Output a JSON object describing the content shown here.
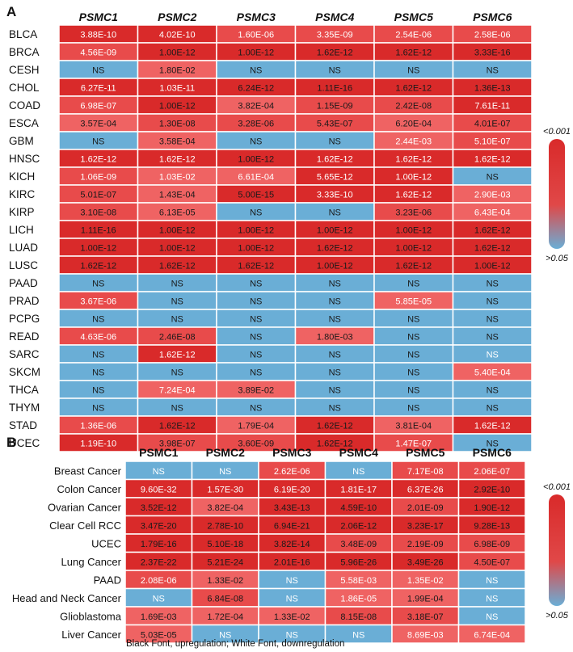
{
  "colors": {
    "strong": "#d92a2a",
    "medium": "#e84b4b",
    "light": "#ef6363",
    "ns": "#6aaed6",
    "grid": "#ffffff",
    "dark_text": "#1a1a1a",
    "light_text": "#ffffff"
  },
  "chart_data": [
    {
      "type": "heatmap",
      "panel_label": "A",
      "columns": [
        "PSMC1",
        "PSMC2",
        "PSMC3",
        "PSMC4",
        "PSMC5",
        "PSMC6"
      ],
      "rows": [
        "BLCA",
        "BRCA",
        "CESH",
        "CHOL",
        "COAD",
        "ESCA",
        "GBM",
        "HNSC",
        "KICH",
        "KIRC",
        "KIRP",
        "LICH",
        "LUAD",
        "LUSC",
        "PAAD",
        "PRAD",
        "PCPG",
        "READ",
        "SARC",
        "SKCM",
        "THCA",
        "THYM",
        "STAD",
        "UCEC"
      ],
      "values": [
        [
          "3.88E-10",
          "4.02E-10",
          "1.60E-06",
          "3.35E-09",
          "2.54E-06",
          "2.58E-06"
        ],
        [
          "4.56E-09",
          "1.00E-12",
          "1.00E-12",
          "1.62E-12",
          "1.62E-12",
          "3.33E-16"
        ],
        [
          "NS",
          "1.80E-02",
          "NS",
          "NS",
          "NS",
          "NS"
        ],
        [
          "6.27E-11",
          "1.03E-11",
          "6.24E-12",
          "1.11E-16",
          "1.62E-12",
          "1.36E-13"
        ],
        [
          "6.98E-07",
          "1.00E-12",
          "3.82E-04",
          "1.15E-09",
          "2.42E-08",
          "7.61E-11"
        ],
        [
          "3.57E-04",
          "1.30E-08",
          "3.28E-06",
          "5.43E-07",
          "6.20E-04",
          "4.01E-07"
        ],
        [
          "NS",
          "3.58E-04",
          "NS",
          "NS",
          "2.44E-03",
          "5.10E-07"
        ],
        [
          "1.62E-12",
          "1.62E-12",
          "1.00E-12",
          "1.62E-12",
          "1.62E-12",
          "1.62E-12"
        ],
        [
          "1.06E-09",
          "1.03E-02",
          "6.61E-04",
          "5.65E-12",
          "1.00E-12",
          "NS"
        ],
        [
          "5.01E-07",
          "1.43E-04",
          "5.00E-15",
          "3.33E-10",
          "1.62E-12",
          "2.90E-03"
        ],
        [
          "3.10E-08",
          "6.13E-05",
          "NS",
          "NS",
          "3.23E-06",
          "6.43E-04"
        ],
        [
          "1.11E-16",
          "1.00E-12",
          "1.00E-12",
          "1.00E-12",
          "1.00E-12",
          "1.62E-12"
        ],
        [
          "1.00E-12",
          "1.00E-12",
          "1.00E-12",
          "1.62E-12",
          "1.00E-12",
          "1.62E-12"
        ],
        [
          "1.62E-12",
          "1.62E-12",
          "1.62E-12",
          "1.00E-12",
          "1.62E-12",
          "1.00E-12"
        ],
        [
          "NS",
          "NS",
          "NS",
          "NS",
          "NS",
          "NS"
        ],
        [
          "3.67E-06",
          "NS",
          "NS",
          "NS",
          "5.85E-05",
          "NS"
        ],
        [
          "NS",
          "NS",
          "NS",
          "NS",
          "NS",
          "NS"
        ],
        [
          "4.63E-06",
          "2.46E-08",
          "NS",
          "1.80E-03",
          "NS",
          "NS"
        ],
        [
          "NS",
          "1.62E-12",
          "NS",
          "NS",
          "NS",
          "NS"
        ],
        [
          "NS",
          "NS",
          "NS",
          "NS",
          "NS",
          "5.40E-04"
        ],
        [
          "NS",
          "7.24E-04",
          "3.89E-02",
          "NS",
          "NS",
          "NS"
        ],
        [
          "NS",
          "NS",
          "NS",
          "NS",
          "NS",
          "NS"
        ],
        [
          "1.36E-06",
          "1.62E-12",
          "1.79E-04",
          "1.62E-12",
          "3.81E-04",
          "1.62E-12"
        ],
        [
          "1.19E-10",
          "3.98E-07",
          "3.60E-09",
          "1.62E-12",
          "1.47E-07",
          "NS"
        ]
      ],
      "white_font": [
        [
          1,
          1,
          1,
          1,
          1,
          1
        ],
        [
          1,
          0,
          0,
          0,
          0,
          0
        ],
        [
          0,
          0,
          0,
          0,
          0,
          0
        ],
        [
          1,
          1,
          0,
          0,
          0,
          0
        ],
        [
          1,
          0,
          0,
          0,
          0,
          1
        ],
        [
          0,
          0,
          0,
          0,
          0,
          0
        ],
        [
          0,
          0,
          0,
          0,
          1,
          1
        ],
        [
          1,
          1,
          0,
          1,
          1,
          1
        ],
        [
          1,
          1,
          1,
          1,
          1,
          0
        ],
        [
          0,
          0,
          0,
          1,
          1,
          1
        ],
        [
          0,
          0,
          0,
          0,
          0,
          1
        ],
        [
          0,
          0,
          0,
          0,
          0,
          0
        ],
        [
          0,
          0,
          0,
          0,
          0,
          0
        ],
        [
          0,
          0,
          0,
          0,
          0,
          0
        ],
        [
          0,
          0,
          0,
          0,
          0,
          0
        ],
        [
          1,
          0,
          0,
          0,
          1,
          0
        ],
        [
          0,
          0,
          0,
          0,
          0,
          0
        ],
        [
          1,
          0,
          0,
          0,
          0,
          0
        ],
        [
          0,
          1,
          0,
          0,
          0,
          1
        ],
        [
          0,
          0,
          0,
          0,
          0,
          1
        ],
        [
          0,
          1,
          0,
          0,
          0,
          0
        ],
        [
          0,
          0,
          0,
          0,
          0,
          0
        ],
        [
          1,
          0,
          0,
          0,
          0,
          1
        ],
        [
          1,
          0,
          0,
          0,
          1,
          0
        ]
      ],
      "legend": {
        "top": "<0.001",
        "bottom": ">0.05"
      }
    },
    {
      "type": "heatmap",
      "panel_label": "B",
      "columns": [
        "PSMC1",
        "PSMC2",
        "PSMC3",
        "PSMC4",
        "PSMC5",
        "PSMC6"
      ],
      "rows": [
        "Breast Cancer",
        "Colon Cancer",
        "Ovarian Cancer",
        "Clear Cell RCC",
        "UCEC",
        "Lung Cancer",
        "PAAD",
        "Head and Neck Cancer",
        "Glioblastoma",
        "Liver Cancer"
      ],
      "values": [
        [
          "NS",
          "NS",
          "2.62E-06",
          "NS",
          "7.17E-08",
          "2.06E-07"
        ],
        [
          "9.60E-32",
          "1.57E-30",
          "6.19E-20",
          "1.81E-17",
          "6.37E-26",
          "2.92E-10"
        ],
        [
          "3.52E-12",
          "3.82E-04",
          "3.43E-13",
          "4.59E-10",
          "2.01E-09",
          "1.90E-12"
        ],
        [
          "3.47E-20",
          "2.78E-10",
          "6.94E-21",
          "2.06E-12",
          "3.23E-17",
          "9.28E-13"
        ],
        [
          "1.79E-16",
          "5.10E-18",
          "3.82E-14",
          "3.48E-09",
          "2.19E-09",
          "6.98E-09"
        ],
        [
          "2.37E-22",
          "5.21E-24",
          "2.01E-16",
          "5.96E-26",
          "3.49E-26",
          "4.50E-07"
        ],
        [
          "2.08E-06",
          "1.33E-02",
          "NS",
          "5.58E-03",
          "1.35E-02",
          "NS"
        ],
        [
          "NS",
          "6.84E-08",
          "NS",
          "1.86E-05",
          "1.99E-04",
          "NS"
        ],
        [
          "1.69E-03",
          "1.72E-04",
          "1.33E-02",
          "8.15E-08",
          "3.18E-07",
          "NS"
        ],
        [
          "5.03E-05",
          "NS",
          "NS",
          "NS",
          "8.69E-03",
          "6.74E-04"
        ]
      ],
      "white_font": [
        [
          1,
          1,
          1,
          1,
          1,
          1
        ],
        [
          1,
          1,
          1,
          1,
          1,
          0
        ],
        [
          0,
          0,
          0,
          0,
          0,
          0
        ],
        [
          0,
          0,
          0,
          0,
          0,
          0
        ],
        [
          0,
          0,
          0,
          0,
          0,
          0
        ],
        [
          0,
          0,
          0,
          0,
          0,
          0
        ],
        [
          1,
          0,
          1,
          1,
          1,
          1
        ],
        [
          1,
          0,
          1,
          1,
          0,
          1
        ],
        [
          0,
          0,
          0,
          0,
          0,
          1
        ],
        [
          0,
          1,
          1,
          1,
          1,
          1
        ]
      ],
      "legend": {
        "top": "<0.001",
        "bottom": ">0.05"
      },
      "caption": "Black Font, upregulation; White Font, downregulation"
    }
  ]
}
